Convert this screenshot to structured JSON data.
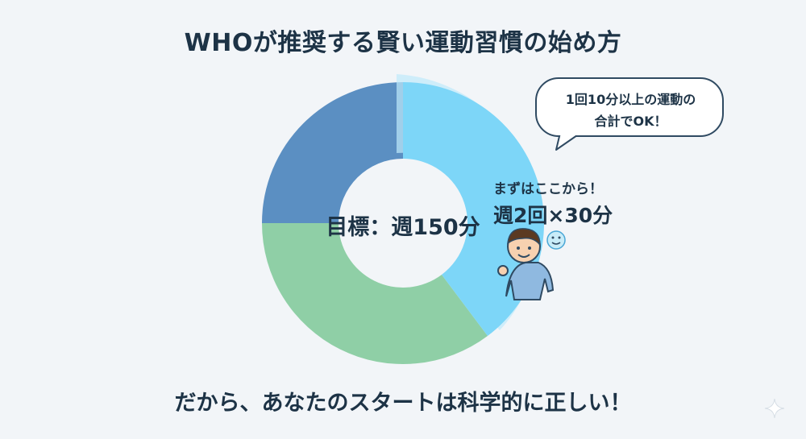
{
  "title": "WHOが推奨する賢い運動習慣の始め方",
  "center_label": "目標：週150分",
  "callout": {
    "title": "まずはここから！",
    "value": "週2回×30分"
  },
  "speech_bubble": {
    "line1": "1回10分以上の運動の",
    "line2": "合計でOK！"
  },
  "bottom_text": "だから、あなたのスタートは科学的に正しい！",
  "colors": {
    "highlight_segment": "#7dd6f8",
    "green_segment": "#8fcfa6",
    "blue_segment": "#5b8fc2",
    "text": "#1d3346"
  },
  "icons": [
    "person-icon",
    "smiley-icon",
    "sparkle-icon"
  ]
}
